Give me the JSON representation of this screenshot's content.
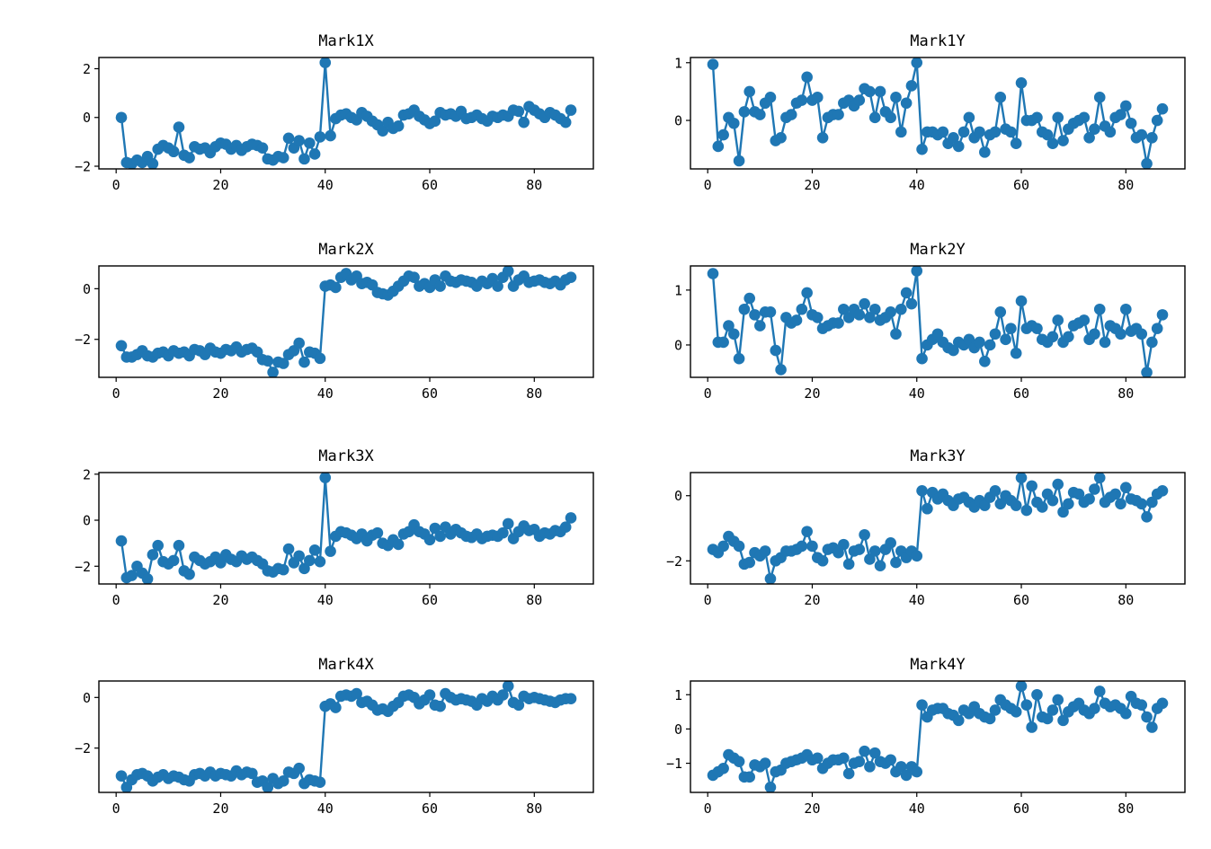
{
  "figure": {
    "background": "#ffffff",
    "rows": 4,
    "cols": 2
  },
  "style": {
    "line_color": "#1f77b4",
    "axis_color": "#000000",
    "tick_color": "#000000"
  },
  "chart_data": [
    {
      "type": "line",
      "title": "Mark1X",
      "x_start": 1,
      "x_step": 1,
      "xlim": [
        -3.3,
        91.3
      ],
      "xticks": [
        0,
        20,
        40,
        60,
        80
      ],
      "ylim": [
        -2.11,
        2.46
      ],
      "yticks": [
        -2,
        0,
        2
      ],
      "grid": false,
      "values": [
        0.0,
        -1.85,
        -1.9,
        -1.75,
        -1.85,
        -1.6,
        -1.9,
        -1.3,
        -1.15,
        -1.25,
        -1.4,
        -0.4,
        -1.55,
        -1.65,
        -1.2,
        -1.3,
        -1.25,
        -1.45,
        -1.2,
        -1.05,
        -1.1,
        -1.3,
        -1.15,
        -1.35,
        -1.2,
        -1.1,
        -1.15,
        -1.25,
        -1.7,
        -1.75,
        -1.6,
        -1.65,
        -0.85,
        -1.25,
        -0.95,
        -1.7,
        -1.05,
        -1.5,
        -0.8,
        2.25,
        -0.75,
        -0.05,
        0.1,
        0.15,
        0.0,
        -0.1,
        0.2,
        0.05,
        -0.15,
        -0.3,
        -0.55,
        -0.2,
        -0.45,
        -0.35,
        0.1,
        0.15,
        0.3,
        0.05,
        -0.1,
        -0.25,
        -0.15,
        0.2,
        0.1,
        0.15,
        0.05,
        0.25,
        -0.05,
        0.0,
        0.1,
        -0.05,
        -0.15,
        0.05,
        0.0,
        0.1,
        0.05,
        0.3,
        0.25,
        -0.2,
        0.45,
        0.3,
        0.15,
        0.0,
        0.2,
        0.1,
        -0.05,
        -0.2,
        0.3
      ]
    },
    {
      "type": "line",
      "title": "Mark1Y",
      "x_start": 1,
      "x_step": 1,
      "xlim": [
        -3.3,
        91.3
      ],
      "xticks": [
        0,
        20,
        40,
        60,
        80
      ],
      "ylim": [
        -0.84,
        1.09
      ],
      "yticks": [
        0,
        1
      ],
      "grid": false,
      "values": [
        0.97,
        -0.45,
        -0.25,
        0.05,
        -0.05,
        -0.7,
        0.15,
        0.5,
        0.15,
        0.1,
        0.3,
        0.4,
        -0.35,
        -0.3,
        0.05,
        0.1,
        0.3,
        0.35,
        0.75,
        0.35,
        0.4,
        -0.3,
        0.05,
        0.1,
        0.1,
        0.3,
        0.35,
        0.25,
        0.35,
        0.55,
        0.5,
        0.05,
        0.5,
        0.15,
        0.05,
        0.4,
        -0.2,
        0.3,
        0.6,
        1.0,
        -0.5,
        -0.2,
        -0.2,
        -0.25,
        -0.2,
        -0.4,
        -0.3,
        -0.45,
        -0.2,
        0.05,
        -0.3,
        -0.2,
        -0.55,
        -0.25,
        -0.2,
        0.4,
        -0.15,
        -0.2,
        -0.4,
        0.65,
        0.0,
        0.0,
        0.05,
        -0.2,
        -0.25,
        -0.4,
        0.05,
        -0.35,
        -0.15,
        -0.05,
        0.0,
        0.05,
        -0.3,
        -0.15,
        0.4,
        -0.1,
        -0.2,
        0.05,
        0.1,
        0.25,
        -0.05,
        -0.3,
        -0.25,
        -0.75,
        -0.3,
        0.0,
        0.2
      ]
    },
    {
      "type": "line",
      "title": "Mark2X",
      "x_start": 1,
      "x_step": 1,
      "xlim": [
        -3.3,
        91.3
      ],
      "xticks": [
        0,
        20,
        40,
        60,
        80
      ],
      "ylim": [
        -3.5,
        0.9
      ],
      "yticks": [
        -2,
        0
      ],
      "grid": false,
      "values": [
        -2.25,
        -2.7,
        -2.7,
        -2.6,
        -2.45,
        -2.65,
        -2.7,
        -2.55,
        -2.5,
        -2.65,
        -2.45,
        -2.55,
        -2.5,
        -2.65,
        -2.4,
        -2.45,
        -2.6,
        -2.35,
        -2.5,
        -2.55,
        -2.4,
        -2.45,
        -2.3,
        -2.5,
        -2.4,
        -2.35,
        -2.5,
        -2.8,
        -2.85,
        -3.3,
        -2.9,
        -2.95,
        -2.6,
        -2.45,
        -2.15,
        -2.9,
        -2.5,
        -2.55,
        -2.75,
        0.1,
        0.15,
        0.05,
        0.45,
        0.6,
        0.35,
        0.5,
        0.2,
        0.25,
        0.15,
        -0.15,
        -0.2,
        -0.25,
        -0.1,
        0.1,
        0.3,
        0.5,
        0.45,
        0.1,
        0.2,
        0.05,
        0.35,
        0.1,
        0.5,
        0.3,
        0.25,
        0.35,
        0.3,
        0.25,
        0.1,
        0.3,
        0.2,
        0.4,
        0.1,
        0.45,
        0.7,
        0.1,
        0.35,
        0.5,
        0.25,
        0.3,
        0.35,
        0.25,
        0.2,
        0.3,
        0.15,
        0.35,
        0.45
      ]
    },
    {
      "type": "line",
      "title": "Mark2Y",
      "x_start": 1,
      "x_step": 1,
      "xlim": [
        -3.3,
        91.3
      ],
      "xticks": [
        0,
        20,
        40,
        60,
        80
      ],
      "ylim": [
        -0.59,
        1.44
      ],
      "yticks": [
        0,
        1
      ],
      "grid": false,
      "values": [
        1.3,
        0.05,
        0.05,
        0.35,
        0.2,
        -0.25,
        0.65,
        0.85,
        0.55,
        0.35,
        0.6,
        0.6,
        -0.1,
        -0.45,
        0.5,
        0.4,
        0.45,
        0.65,
        0.95,
        0.55,
        0.5,
        0.3,
        0.35,
        0.4,
        0.4,
        0.65,
        0.5,
        0.65,
        0.55,
        0.75,
        0.5,
        0.65,
        0.45,
        0.5,
        0.6,
        0.2,
        0.65,
        0.95,
        0.75,
        1.35,
        -0.25,
        0.0,
        0.1,
        0.2,
        0.05,
        -0.05,
        -0.1,
        0.05,
        0.0,
        0.1,
        -0.05,
        0.05,
        -0.3,
        0.0,
        0.2,
        0.6,
        0.1,
        0.3,
        -0.15,
        0.8,
        0.3,
        0.35,
        0.3,
        0.1,
        0.05,
        0.15,
        0.45,
        0.05,
        0.15,
        0.35,
        0.4,
        0.45,
        0.1,
        0.2,
        0.65,
        0.05,
        0.35,
        0.3,
        0.2,
        0.65,
        0.25,
        0.3,
        0.2,
        -0.5,
        0.05,
        0.3,
        0.55
      ]
    },
    {
      "type": "line",
      "title": "Mark3X",
      "x_start": 1,
      "x_step": 1,
      "xlim": [
        -3.3,
        91.3
      ],
      "xticks": [
        0,
        20,
        40,
        60,
        80
      ],
      "ylim": [
        -2.77,
        2.07
      ],
      "yticks": [
        -2,
        0,
        2
      ],
      "grid": false,
      "values": [
        -0.9,
        -2.5,
        -2.4,
        -2.0,
        -2.3,
        -2.55,
        -1.5,
        -1.1,
        -1.8,
        -1.9,
        -1.75,
        -1.1,
        -2.2,
        -2.35,
        -1.6,
        -1.75,
        -1.9,
        -1.8,
        -1.6,
        -1.85,
        -1.5,
        -1.7,
        -1.8,
        -1.55,
        -1.7,
        -1.6,
        -1.75,
        -1.9,
        -2.2,
        -2.25,
        -2.1,
        -2.15,
        -1.25,
        -1.85,
        -1.55,
        -2.1,
        -1.75,
        -1.3,
        -1.8,
        1.85,
        -1.35,
        -0.7,
        -0.5,
        -0.55,
        -0.65,
        -0.8,
        -0.6,
        -0.9,
        -0.65,
        -0.55,
        -1.0,
        -1.1,
        -0.85,
        -1.05,
        -0.6,
        -0.5,
        -0.2,
        -0.5,
        -0.6,
        -0.85,
        -0.35,
        -0.7,
        -0.3,
        -0.6,
        -0.4,
        -0.55,
        -0.7,
        -0.75,
        -0.6,
        -0.8,
        -0.7,
        -0.65,
        -0.7,
        -0.55,
        -0.15,
        -0.8,
        -0.5,
        -0.25,
        -0.45,
        -0.4,
        -0.7,
        -0.55,
        -0.6,
        -0.45,
        -0.5,
        -0.3,
        0.1
      ]
    },
    {
      "type": "line",
      "title": "Mark3Y",
      "x_start": 1,
      "x_step": 1,
      "xlim": [
        -3.3,
        91.3
      ],
      "xticks": [
        0,
        20,
        40,
        60,
        80
      ],
      "ylim": [
        -2.71,
        0.71
      ],
      "yticks": [
        -2,
        0
      ],
      "grid": false,
      "values": [
        -1.65,
        -1.75,
        -1.55,
        -1.25,
        -1.4,
        -1.55,
        -2.1,
        -2.05,
        -1.75,
        -1.85,
        -1.7,
        -2.55,
        -2.0,
        -1.9,
        -1.7,
        -1.7,
        -1.65,
        -1.55,
        -1.1,
        -1.55,
        -1.9,
        -2.0,
        -1.65,
        -1.6,
        -1.75,
        -1.5,
        -2.1,
        -1.7,
        -1.65,
        -1.2,
        -1.95,
        -1.7,
        -2.15,
        -1.65,
        -1.45,
        -2.05,
        -1.7,
        -1.9,
        -1.7,
        -1.85,
        0.15,
        -0.4,
        0.1,
        -0.1,
        0.05,
        -0.15,
        -0.3,
        -0.1,
        -0.05,
        -0.2,
        -0.35,
        -0.15,
        -0.3,
        -0.05,
        0.15,
        -0.25,
        0.0,
        -0.15,
        -0.3,
        0.55,
        -0.45,
        0.3,
        -0.2,
        -0.35,
        0.05,
        -0.15,
        0.35,
        -0.5,
        -0.25,
        0.1,
        0.05,
        -0.2,
        -0.1,
        0.2,
        0.55,
        -0.2,
        -0.05,
        0.05,
        -0.25,
        0.25,
        -0.1,
        -0.15,
        -0.25,
        -0.65,
        -0.2,
        0.05,
        0.15
      ]
    },
    {
      "type": "line",
      "title": "Mark4X",
      "x_start": 1,
      "x_step": 1,
      "xlim": [
        -3.3,
        91.3
      ],
      "xticks": [
        0,
        20,
        40,
        60,
        80
      ],
      "ylim": [
        -3.75,
        0.65
      ],
      "yticks": [
        -2,
        0
      ],
      "grid": false,
      "values": [
        -3.1,
        -3.55,
        -3.25,
        -3.05,
        -3.0,
        -3.1,
        -3.3,
        -3.15,
        -3.05,
        -3.2,
        -3.1,
        -3.15,
        -3.25,
        -3.3,
        -3.05,
        -3.0,
        -3.1,
        -2.95,
        -3.1,
        -3.0,
        -3.05,
        -3.1,
        -2.9,
        -3.05,
        -2.95,
        -3.0,
        -3.35,
        -3.3,
        -3.55,
        -3.2,
        -3.4,
        -3.3,
        -2.95,
        -3.0,
        -2.8,
        -3.4,
        -3.25,
        -3.3,
        -3.35,
        -0.35,
        -0.25,
        -0.4,
        0.05,
        0.1,
        0.05,
        0.15,
        -0.2,
        -0.15,
        -0.3,
        -0.5,
        -0.45,
        -0.55,
        -0.35,
        -0.2,
        0.05,
        0.1,
        0.0,
        -0.25,
        -0.1,
        0.1,
        -0.3,
        -0.35,
        0.15,
        0.0,
        -0.1,
        -0.05,
        -0.1,
        -0.15,
        -0.3,
        -0.05,
        -0.15,
        0.05,
        -0.1,
        0.1,
        0.45,
        -0.2,
        -0.3,
        0.05,
        -0.05,
        0.0,
        -0.05,
        -0.1,
        -0.15,
        -0.2,
        -0.1,
        -0.05,
        -0.05
      ]
    },
    {
      "type": "line",
      "title": "Mark4Y",
      "x_start": 1,
      "x_step": 1,
      "xlim": [
        -3.3,
        91.3
      ],
      "xticks": [
        0,
        20,
        40,
        60,
        80
      ],
      "ylim": [
        -1.85,
        1.4
      ],
      "yticks": [
        -1,
        0,
        1
      ],
      "grid": false,
      "values": [
        -1.35,
        -1.25,
        -1.15,
        -0.75,
        -0.85,
        -0.95,
        -1.4,
        -1.4,
        -1.05,
        -1.1,
        -1.0,
        -1.7,
        -1.25,
        -1.2,
        -1.0,
        -0.95,
        -0.9,
        -0.85,
        -0.75,
        -0.9,
        -0.85,
        -1.15,
        -1.0,
        -0.9,
        -0.9,
        -0.85,
        -1.3,
        -1.0,
        -0.95,
        -0.65,
        -1.1,
        -0.7,
        -0.95,
        -1.0,
        -0.9,
        -1.25,
        -1.1,
        -1.35,
        -1.1,
        -1.25,
        0.7,
        0.35,
        0.55,
        0.6,
        0.6,
        0.45,
        0.4,
        0.25,
        0.55,
        0.45,
        0.65,
        0.45,
        0.35,
        0.3,
        0.55,
        0.85,
        0.7,
        0.6,
        0.5,
        1.25,
        0.7,
        0.05,
        1.0,
        0.35,
        0.3,
        0.55,
        0.85,
        0.25,
        0.5,
        0.65,
        0.75,
        0.55,
        0.45,
        0.6,
        1.1,
        0.75,
        0.65,
        0.7,
        0.6,
        0.45,
        0.95,
        0.75,
        0.7,
        0.35,
        0.05,
        0.6,
        0.75
      ]
    }
  ]
}
